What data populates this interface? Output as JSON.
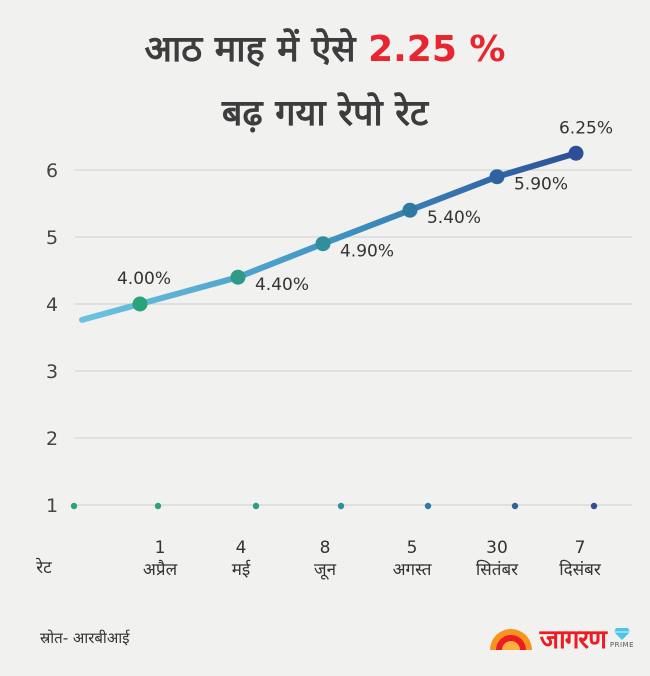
{
  "title": {
    "line1_pre": "आठ माह में ऐसे ",
    "line1_highlight": "2.25 %",
    "line2": "बढ़ गया रेपो रेट"
  },
  "chart_data": {
    "type": "line",
    "ylim": [
      0,
      6.8
    ],
    "yticks": [
      1,
      2,
      3,
      4,
      5,
      6
    ],
    "row_label": "रेट",
    "categories": [
      {
        "day": "1",
        "month": "अप्रैल"
      },
      {
        "day": "4",
        "month": "मई"
      },
      {
        "day": "8",
        "month": "जून"
      },
      {
        "day": "5",
        "month": "अगस्त"
      },
      {
        "day": "30",
        "month": "सितंबर"
      },
      {
        "day": "7",
        "month": "दिसंबर"
      }
    ],
    "values": [
      4.0,
      4.4,
      4.9,
      5.4,
      5.9,
      6.25
    ],
    "labels": [
      "4.00%",
      "4.40%",
      "4.90%",
      "5.40%",
      "5.90%",
      "6.25%"
    ],
    "grid": true,
    "colors": {
      "start": "#6cc3e0",
      "mid": "#3c8fc0",
      "end": "#2e4f95",
      "marker_start": "#2aa37a"
    }
  },
  "source": "स्रोत- आरबीआई",
  "logo": {
    "brand": "जागरण",
    "badge": "PRIME"
  }
}
